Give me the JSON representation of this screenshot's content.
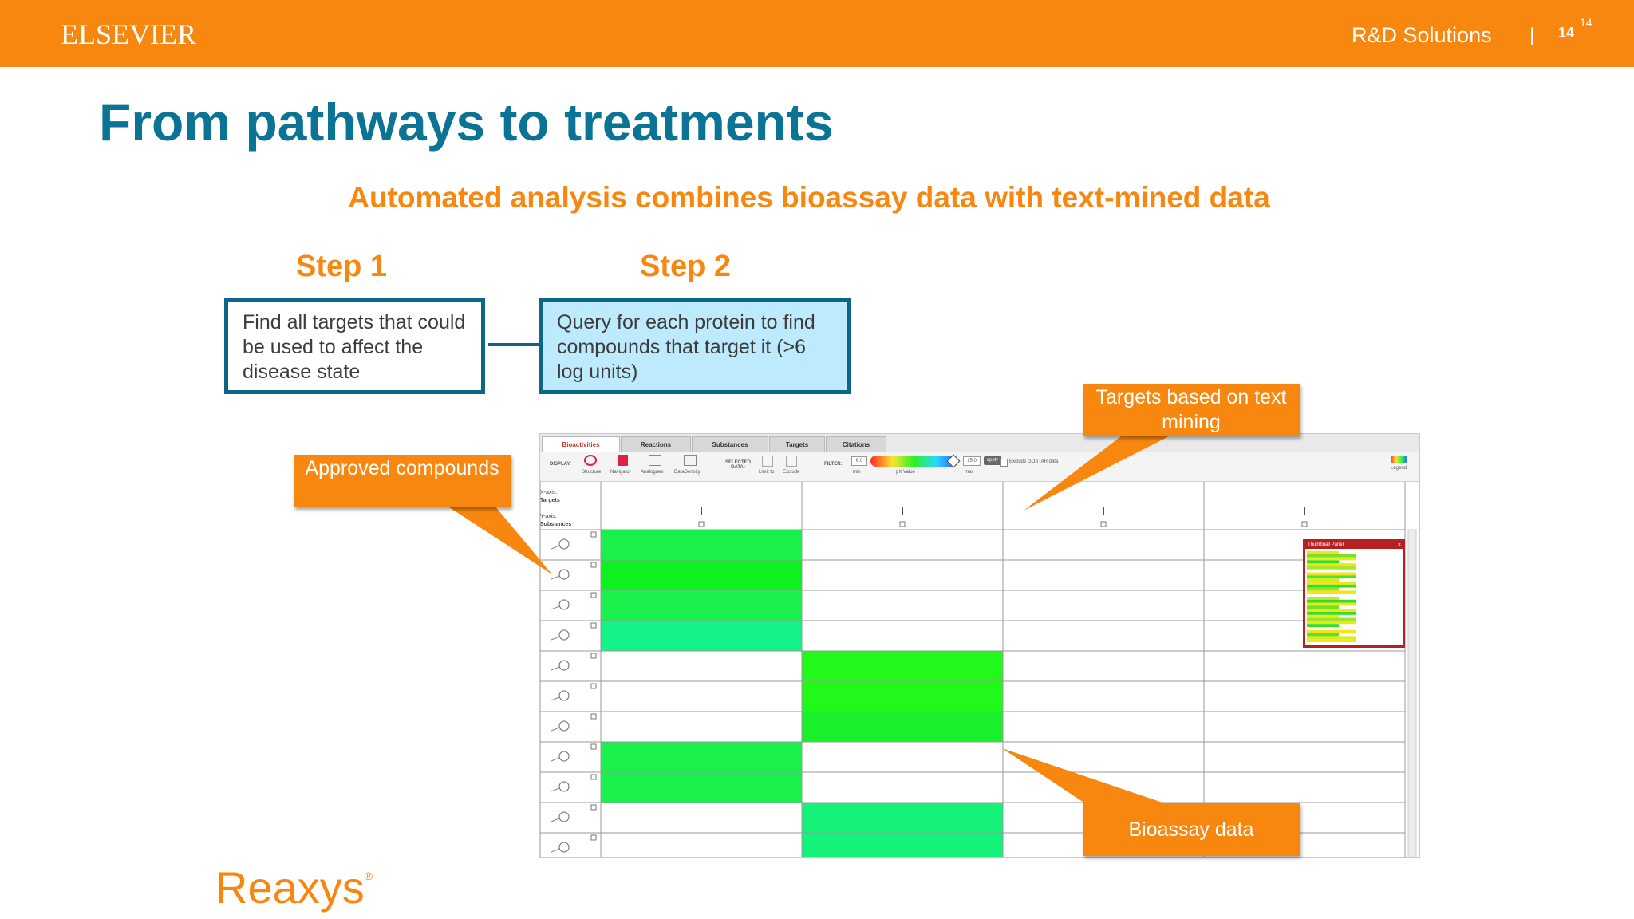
{
  "header": {
    "brand": "ELSEVIER",
    "section": "R&D Solutions",
    "separator": "|",
    "page_number": "14",
    "page_number_sup": "14"
  },
  "slide": {
    "title": "From pathways to treatments",
    "subtitle": "Automated analysis combines bioassay data with text-mined data",
    "step1_label": "Step 1",
    "step2_label": "Step 2",
    "step1_text": "Find all targets that could be used to affect the disease state",
    "step2_text": "Query for each protein to find compounds that target it (>6 log units)",
    "callout_approved": "Approved compounds",
    "callout_targets": "Targets based on text mining",
    "callout_bioassay": "Bioassay data",
    "footer_brand": "Reaxys",
    "footer_mark": "®"
  },
  "app": {
    "tabs": [
      {
        "label": "Bioactivities",
        "active": true
      },
      {
        "label": "Reactions",
        "active": false
      },
      {
        "label": "Substances",
        "active": false
      },
      {
        "label": "Targets",
        "active": false
      },
      {
        "label": "Citations",
        "active": false
      }
    ],
    "toolbar": {
      "display_label": "DISPLAY:",
      "selected_data_label": "SELECTED DATA:",
      "filter_label": "FILTER:",
      "filter_min": "6.0",
      "filter_max": "15.0",
      "filter_button": "apply",
      "exclude_label": "Exclude GOSTAR data",
      "legend_label": "Legend",
      "tools": [
        "Structure",
        "Navigator",
        "Analogues",
        "DataDensity"
      ],
      "unit_labels": [
        "Limit to",
        "Exclude"
      ],
      "range_labels": [
        "min",
        "pX Value",
        "max"
      ]
    },
    "axis_labels": {
      "x_axis": "X-axis:",
      "x_value": "Targets",
      "y_axis": "Y-axis:",
      "y_value": "Substances"
    },
    "thumbnail_title": "Thumbnail Panel",
    "heatmap_cells": [
      {
        "row": 0,
        "col": 0,
        "color": "#19f04b"
      },
      {
        "row": 1,
        "col": 0,
        "color": "#0ef01f"
      },
      {
        "row": 2,
        "col": 0,
        "color": "#19f04b"
      },
      {
        "row": 3,
        "col": 0,
        "color": "#14f28a"
      },
      {
        "row": 4,
        "col": 1,
        "color": "#22f91a"
      },
      {
        "row": 5,
        "col": 1,
        "color": "#22f91a"
      },
      {
        "row": 6,
        "col": 1,
        "color": "#1aef2b"
      },
      {
        "row": 7,
        "col": 0,
        "color": "#19f04b"
      },
      {
        "row": 8,
        "col": 0,
        "color": "#19f04b"
      },
      {
        "row": 9,
        "col": 1,
        "color": "#14f27a"
      },
      {
        "row": 10,
        "col": 1,
        "color": "#14f27a"
      }
    ],
    "colors": {
      "brand_orange": "#f7870e",
      "title_teal": "#0b7394",
      "box_border": "#0b6688",
      "step2_fill": "#bdeafc"
    }
  }
}
